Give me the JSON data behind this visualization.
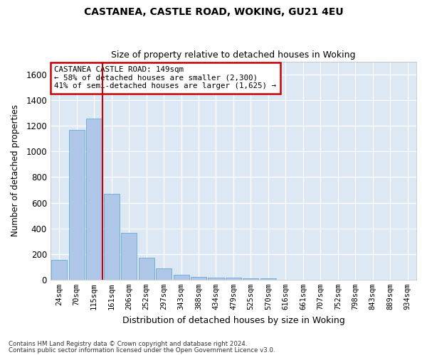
{
  "title": "CASTANEA, CASTLE ROAD, WOKING, GU21 4EU",
  "subtitle": "Size of property relative to detached houses in Woking",
  "xlabel": "Distribution of detached houses by size in Woking",
  "ylabel": "Number of detached properties",
  "categories": [
    "24sqm",
    "70sqm",
    "115sqm",
    "161sqm",
    "206sqm",
    "252sqm",
    "297sqm",
    "343sqm",
    "388sqm",
    "434sqm",
    "479sqm",
    "525sqm",
    "570sqm",
    "616sqm",
    "661sqm",
    "707sqm",
    "752sqm",
    "798sqm",
    "843sqm",
    "889sqm",
    "934sqm"
  ],
  "values": [
    155,
    1170,
    1255,
    670,
    365,
    170,
    88,
    38,
    22,
    18,
    18,
    12,
    12,
    0,
    0,
    0,
    0,
    0,
    0,
    0,
    0
  ],
  "bar_color": "#aec6e8",
  "bar_edge_color": "#6aaad4",
  "bg_color": "#dde8f5",
  "grid_color": "#ffffff",
  "vline_position": 2.5,
  "vline_color": "#cc0000",
  "annotation_box_text": "CASTANEA CASTLE ROAD: 149sqm\n← 58% of detached houses are smaller (2,300)\n41% of semi-detached houses are larger (1,625) →",
  "annotation_box_color": "#cc0000",
  "ylim": [
    0,
    1700
  ],
  "yticks": [
    0,
    200,
    400,
    600,
    800,
    1000,
    1200,
    1400,
    1600
  ],
  "footer1": "Contains HM Land Registry data © Crown copyright and database right 2024.",
  "footer2": "Contains public sector information licensed under the Open Government Licence v3.0."
}
